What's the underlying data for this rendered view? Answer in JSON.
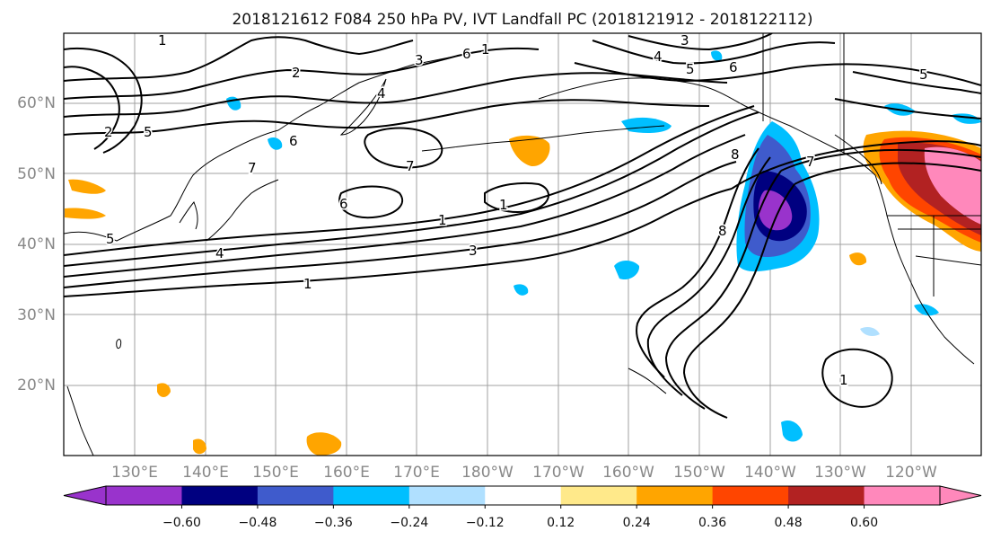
{
  "title": "2018121612 F084 250 hPa PV, IVT Landfall PC (2018121912 - 2018122112)",
  "lat_ticks": [
    "20°N",
    "30°N",
    "40°N",
    "50°N",
    "60°N"
  ],
  "lon_ticks": [
    "130°E",
    "140°E",
    "150°E",
    "160°E",
    "170°E",
    "180°W",
    "170°W",
    "160°W",
    "150°W",
    "140°W",
    "130°W",
    "120°W"
  ],
  "colorbar": {
    "colors": [
      "#9933cc",
      "#000080",
      "#3f5bcc",
      "#00bfff",
      "#b0e0ff",
      "#ffffff",
      "#ffe98a",
      "#ffa500",
      "#ff4500",
      "#b22222",
      "#ff88bb"
    ],
    "tick_labels": [
      "−0.60",
      "−0.48",
      "−0.36",
      "−0.24",
      "−0.12",
      "0.12",
      "0.24",
      "0.36",
      "0.48",
      "0.60"
    ]
  },
  "contour_labels": [
    "1",
    "2",
    "3",
    "4",
    "5",
    "6",
    "7",
    "8"
  ]
}
